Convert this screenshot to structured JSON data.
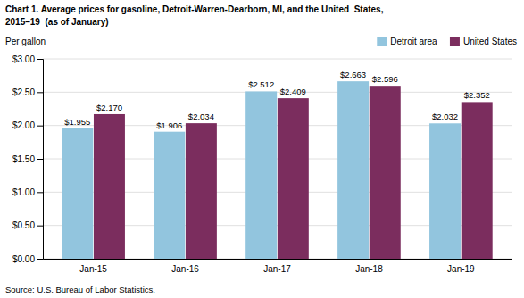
{
  "chart_data": {
    "type": "bar",
    "title": "Chart 1. Average prices for gasoline, Detroit-Warren-Dearborn, MI, and the United  States,",
    "subtitle": "2015–19  (as of January)",
    "y_label": "Per gallon",
    "annotations": [
      "Source: U.S. Bureau of Labor Statistics."
    ],
    "categories": [
      "Jan-15",
      "Jan-16",
      "Jan-17",
      "Jan-18",
      "Jan-19"
    ],
    "series": [
      {
        "name": "Detroit area",
        "color": "#92C5DE",
        "values": [
          1.955,
          1.906,
          2.512,
          2.663,
          2.032
        ],
        "value_labels": [
          "$1.955",
          "$1.906",
          "$2.512",
          "$2.663",
          "$2.032"
        ]
      },
      {
        "name": "United States",
        "color": "#7B2D5E",
        "values": [
          2.17,
          2.034,
          2.409,
          2.596,
          2.352
        ],
        "value_labels": [
          "$2.170",
          "$2.034",
          "$2.409",
          "$2.596",
          "$2.352"
        ]
      }
    ],
    "ylim": [
      0,
      3.0
    ],
    "yticks": [
      {
        "value": 0.0,
        "label": "$0.00"
      },
      {
        "value": 0.5,
        "label": "$0.50"
      },
      {
        "value": 1.0,
        "label": "$1.00"
      },
      {
        "value": 1.5,
        "label": "$1.50"
      },
      {
        "value": 2.0,
        "label": "$2.00"
      },
      {
        "value": 2.5,
        "label": "$2.50"
      },
      {
        "value": 3.0,
        "label": "$3.00"
      }
    ],
    "grid": true,
    "legend": "upper right",
    "data_labels": true
  }
}
